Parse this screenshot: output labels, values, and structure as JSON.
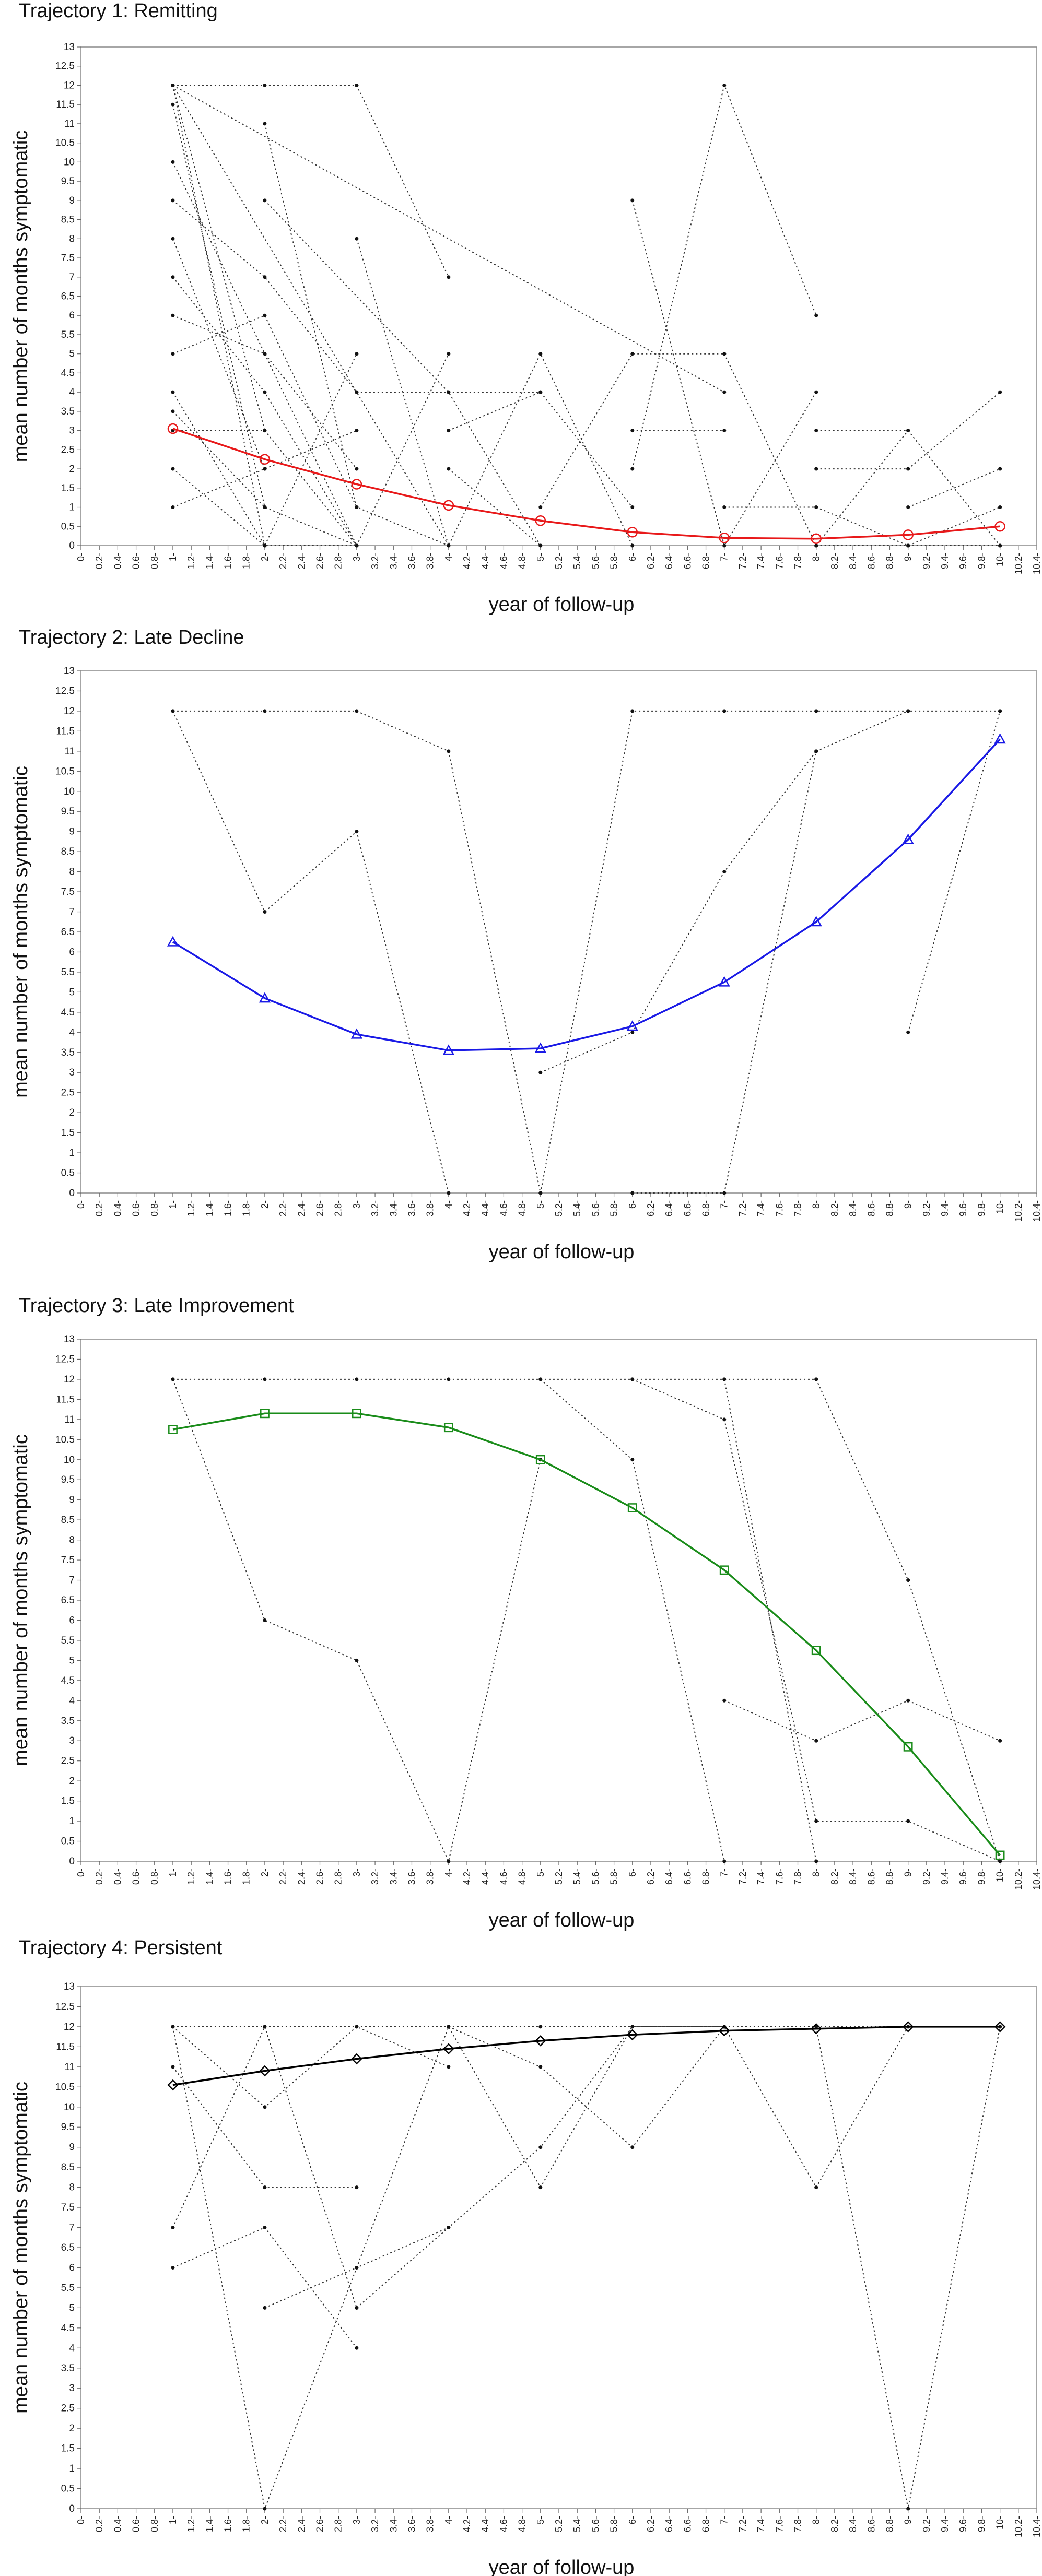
{
  "chart_data": [
    {
      "type": "line",
      "title": "Trajectory 1: Remitting",
      "xlabel": "year of follow-up",
      "ylabel": "mean number of months symptomatic",
      "xlim": [
        0,
        10.4
      ],
      "ylim": [
        0,
        13
      ],
      "grid": false,
      "legend": "none",
      "colors": {
        "mean": "#e8191a",
        "individual": "#333333"
      },
      "marker": "circle",
      "mean_series": {
        "x": [
          1,
          2,
          3,
          4,
          5,
          6,
          7,
          8,
          9,
          10
        ],
        "y": [
          3.05,
          2.25,
          1.6,
          1.05,
          0.65,
          0.35,
          0.2,
          0.18,
          0.28,
          0.5
        ]
      },
      "individual_series": [
        {
          "x": [
            1,
            2
          ],
          "y": [
            12,
            0
          ]
        },
        {
          "x": [
            1,
            2
          ],
          "y": [
            12,
            3
          ]
        },
        {
          "x": [
            1,
            3
          ],
          "y": [
            12,
            12
          ]
        },
        {
          "x": [
            1,
            4
          ],
          "y": [
            12,
            0
          ]
        },
        {
          "x": [
            1,
            2
          ],
          "y": [
            11.5,
            1
          ]
        },
        {
          "x": [
            1,
            2,
            3
          ],
          "y": [
            10,
            5,
            0
          ]
        },
        {
          "x": [
            1,
            2,
            3
          ],
          "y": [
            9,
            7,
            4
          ]
        },
        {
          "x": [
            1,
            2
          ],
          "y": [
            8,
            2
          ]
        },
        {
          "x": [
            1,
            2,
            3
          ],
          "y": [
            7,
            4,
            0
          ]
        },
        {
          "x": [
            1,
            2,
            3
          ],
          "y": [
            6,
            5,
            2
          ]
        },
        {
          "x": [
            1,
            2,
            3
          ],
          "y": [
            5,
            6,
            1
          ]
        },
        {
          "x": [
            1,
            2,
            3
          ],
          "y": [
            4,
            0,
            5
          ]
        },
        {
          "x": [
            1,
            2,
            3
          ],
          "y": [
            3.5,
            1,
            0
          ]
        },
        {
          "x": [
            1,
            2,
            3
          ],
          "y": [
            3,
            3,
            0
          ]
        },
        {
          "x": [
            1,
            2,
            3
          ],
          "y": [
            2,
            0,
            0
          ]
        },
        {
          "x": [
            1,
            2,
            3
          ],
          "y": [
            1,
            2,
            3
          ]
        },
        {
          "x": [
            2,
            3,
            4
          ],
          "y": [
            12,
            12,
            7
          ]
        },
        {
          "x": [
            2,
            3,
            4
          ],
          "y": [
            11,
            1,
            0
          ]
        },
        {
          "x": [
            2,
            4,
            5
          ],
          "y": [
            9,
            4,
            0
          ]
        },
        {
          "x": [
            3,
            4,
            5,
            6
          ],
          "y": [
            8,
            0,
            5,
            0
          ]
        },
        {
          "x": [
            3,
            4,
            5
          ],
          "y": [
            4,
            4,
            4
          ]
        },
        {
          "x": [
            3,
            4
          ],
          "y": [
            0,
            5
          ]
        },
        {
          "x": [
            4,
            5,
            6
          ],
          "y": [
            3,
            4,
            1
          ]
        },
        {
          "x": [
            4,
            5
          ],
          "y": [
            2,
            0
          ]
        },
        {
          "x": [
            1,
            7
          ],
          "y": [
            12,
            4
          ]
        },
        {
          "x": [
            5,
            6,
            7
          ],
          "y": [
            1,
            5,
            5
          ]
        },
        {
          "x": [
            6,
            7,
            8
          ],
          "y": [
            9,
            0,
            4
          ]
        },
        {
          "x": [
            6,
            7
          ],
          "y": [
            3,
            3
          ]
        },
        {
          "x": [
            6,
            7,
            8
          ],
          "y": [
            2,
            12,
            6
          ]
        },
        {
          "x": [
            7,
            8,
            9
          ],
          "y": [
            5,
            0,
            3
          ]
        },
        {
          "x": [
            7,
            8,
            9,
            10
          ],
          "y": [
            1,
            1,
            0,
            1
          ]
        },
        {
          "x": [
            8,
            9,
            10
          ],
          "y": [
            3,
            3,
            0
          ]
        },
        {
          "x": [
            8,
            9,
            10
          ],
          "y": [
            2,
            2,
            4
          ]
        },
        {
          "x": [
            9,
            10
          ],
          "y": [
            1,
            2
          ]
        },
        {
          "x": [
            8,
            9,
            10
          ],
          "y": [
            0,
            0,
            0
          ]
        }
      ]
    },
    {
      "type": "line",
      "title": "Trajectory 2: Late Decline",
      "xlabel": "year of follow-up",
      "ylabel": "mean number of months symptomatic",
      "xlim": [
        0,
        10.4
      ],
      "ylim": [
        0,
        13
      ],
      "grid": false,
      "legend": "none",
      "colors": {
        "mean": "#1a1ae6",
        "individual": "#333333"
      },
      "marker": "triangle",
      "mean_series": {
        "x": [
          1,
          2,
          3,
          4,
          5,
          6,
          7,
          8,
          9,
          10
        ],
        "y": [
          6.25,
          4.85,
          3.95,
          3.55,
          3.6,
          4.15,
          5.25,
          6.75,
          8.8,
          11.3
        ]
      },
      "individual_series": [
        {
          "x": [
            1,
            2,
            3,
            4,
            5
          ],
          "y": [
            12,
            12,
            12,
            11,
            0
          ]
        },
        {
          "x": [
            1,
            2,
            3,
            4
          ],
          "y": [
            12,
            7,
            9,
            0
          ]
        },
        {
          "x": [
            5,
            6,
            7,
            8,
            9,
            10
          ],
          "y": [
            0,
            12,
            12,
            12,
            12,
            12
          ]
        },
        {
          "x": [
            5,
            6,
            7,
            8
          ],
          "y": [
            3,
            4,
            8,
            11
          ]
        },
        {
          "x": [
            6,
            7,
            8,
            9
          ],
          "y": [
            0,
            0,
            11,
            12
          ]
        },
        {
          "x": [
            9,
            10
          ],
          "y": [
            4,
            12
          ]
        }
      ]
    },
    {
      "type": "line",
      "title": "Trajectory 3: Late Improvement",
      "xlabel": "year of follow-up",
      "ylabel": "mean number of months symptomatic",
      "xlim": [
        0,
        10.4
      ],
      "ylim": [
        0,
        13
      ],
      "grid": false,
      "legend": "none",
      "colors": {
        "mean": "#1a8c1a",
        "individual": "#333333"
      },
      "marker": "square",
      "mean_series": {
        "x": [
          1,
          2,
          3,
          4,
          5,
          6,
          7,
          8,
          9,
          10
        ],
        "y": [
          10.75,
          11.15,
          11.15,
          10.8,
          10.0,
          8.8,
          7.25,
          5.25,
          2.85,
          0.15
        ]
      },
      "individual_series": [
        {
          "x": [
            1,
            2,
            3,
            4,
            5,
            6,
            7,
            8
          ],
          "y": [
            12,
            12,
            12,
            12,
            12,
            12,
            12,
            12
          ]
        },
        {
          "x": [
            1,
            2,
            3,
            4,
            5
          ],
          "y": [
            12,
            6,
            5,
            0,
            10
          ]
        },
        {
          "x": [
            5,
            6,
            7
          ],
          "y": [
            12,
            10,
            0
          ]
        },
        {
          "x": [
            6,
            7,
            8,
            9,
            10
          ],
          "y": [
            12,
            11,
            1,
            1,
            0
          ]
        },
        {
          "x": [
            7,
            8,
            9,
            10
          ],
          "y": [
            4,
            3,
            4,
            3
          ]
        },
        {
          "x": [
            8,
            9,
            10
          ],
          "y": [
            12,
            7,
            0
          ]
        },
        {
          "x": [
            7,
            8
          ],
          "y": [
            12,
            0
          ]
        }
      ]
    },
    {
      "type": "line",
      "title": "Trajectory 4: Persistent",
      "xlabel": "year of follow-up",
      "ylabel": "mean number of months symptomatic",
      "xlim": [
        0,
        10.4
      ],
      "ylim": [
        0,
        13
      ],
      "grid": false,
      "legend": "none",
      "colors": {
        "mean": "#000000",
        "individual": "#333333"
      },
      "marker": "diamond",
      "mean_series": {
        "x": [
          1,
          2,
          3,
          4,
          5,
          6,
          7,
          8,
          9,
          10
        ],
        "y": [
          10.55,
          10.9,
          11.2,
          11.45,
          11.65,
          11.8,
          11.9,
          11.95,
          12,
          12
        ]
      },
      "individual_series": [
        {
          "x": [
            1,
            2,
            3,
            4,
            5,
            6,
            7,
            8,
            9,
            10
          ],
          "y": [
            12,
            12,
            12,
            12,
            12,
            12,
            12,
            12,
            12,
            12
          ]
        },
        {
          "x": [
            1,
            2,
            3
          ],
          "y": [
            11,
            8,
            8
          ]
        },
        {
          "x": [
            1,
            2,
            3
          ],
          "y": [
            7,
            12,
            5
          ]
        },
        {
          "x": [
            1,
            2,
            3
          ],
          "y": [
            6,
            7,
            4
          ]
        },
        {
          "x": [
            1,
            2,
            3,
            4
          ],
          "y": [
            12,
            0,
            6,
            7
          ]
        },
        {
          "x": [
            2,
            3,
            4,
            5,
            6,
            7
          ],
          "y": [
            5,
            6,
            12,
            8,
            12,
            12
          ]
        },
        {
          "x": [
            1,
            2,
            3,
            4
          ],
          "y": [
            12,
            10,
            12,
            11
          ]
        },
        {
          "x": [
            3,
            4,
            5,
            6,
            7,
            8,
            9,
            10
          ],
          "y": [
            5,
            7,
            9,
            12,
            12,
            8,
            12,
            12
          ]
        },
        {
          "x": [
            4,
            5,
            6,
            7
          ],
          "y": [
            12,
            11,
            9,
            12
          ]
        },
        {
          "x": [
            8,
            9,
            10
          ],
          "y": [
            12,
            0,
            12
          ]
        }
      ]
    }
  ]
}
